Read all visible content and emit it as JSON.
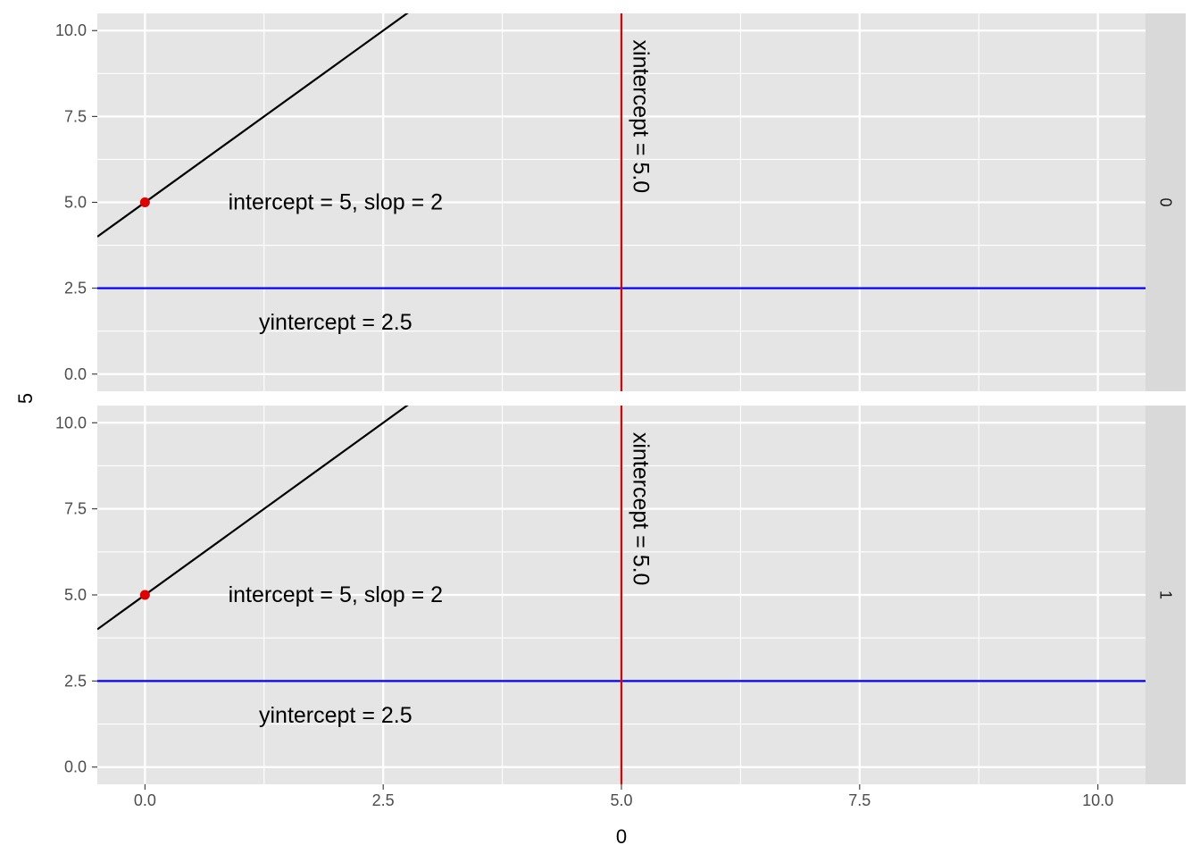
{
  "chart_data": {
    "type": "line",
    "facet_by": "rows",
    "xlabel": "0",
    "ylabel": "5",
    "xlim": [
      -0.5,
      10.5
    ],
    "ylim": [
      -0.5,
      10.5
    ],
    "x_ticks": [
      0.0,
      2.5,
      5.0,
      7.5,
      10.0
    ],
    "x_tick_labels": [
      "0.0",
      "2.5",
      "5.0",
      "7.5",
      "10.0"
    ],
    "y_ticks": [
      0.0,
      2.5,
      5.0,
      7.5,
      10.0
    ],
    "y_tick_labels": [
      "0.0",
      "2.5",
      "5.0",
      "7.5",
      "10.0"
    ],
    "grid": true,
    "colors": {
      "panel_background": "#e5e5e5",
      "strip_background": "#d9d9d9",
      "grid": "#ffffff",
      "abline": "#000000",
      "hline": "#0000ff",
      "vline": "#e00000",
      "point": "#e00000"
    },
    "panels": [
      {
        "strip_label": "0",
        "abline": {
          "intercept": 5,
          "slope": 2
        },
        "hline": {
          "yintercept": 2.5
        },
        "vline": {
          "xintercept": 5.0
        },
        "points": [
          {
            "x": 0,
            "y": 5
          }
        ],
        "annotations": [
          {
            "text": "intercept = 5, slop = 2",
            "x": 2.0,
            "y": 5.0
          },
          {
            "text": "yintercept = 2.5",
            "x": 2.0,
            "y": 1.5
          },
          {
            "text": "xintercept = 5.0",
            "x": 5.2,
            "y": 7.5,
            "rotation": 90
          }
        ]
      },
      {
        "strip_label": "1",
        "abline": {
          "intercept": 5,
          "slope": 2
        },
        "hline": {
          "yintercept": 2.5
        },
        "vline": {
          "xintercept": 5.0
        },
        "points": [
          {
            "x": 0,
            "y": 5
          }
        ],
        "annotations": [
          {
            "text": "intercept = 5, slop = 2",
            "x": 2.0,
            "y": 5.0
          },
          {
            "text": "yintercept = 2.5",
            "x": 2.0,
            "y": 1.5
          },
          {
            "text": "xintercept = 5.0",
            "x": 5.2,
            "y": 7.5,
            "rotation": 90
          }
        ]
      }
    ]
  }
}
